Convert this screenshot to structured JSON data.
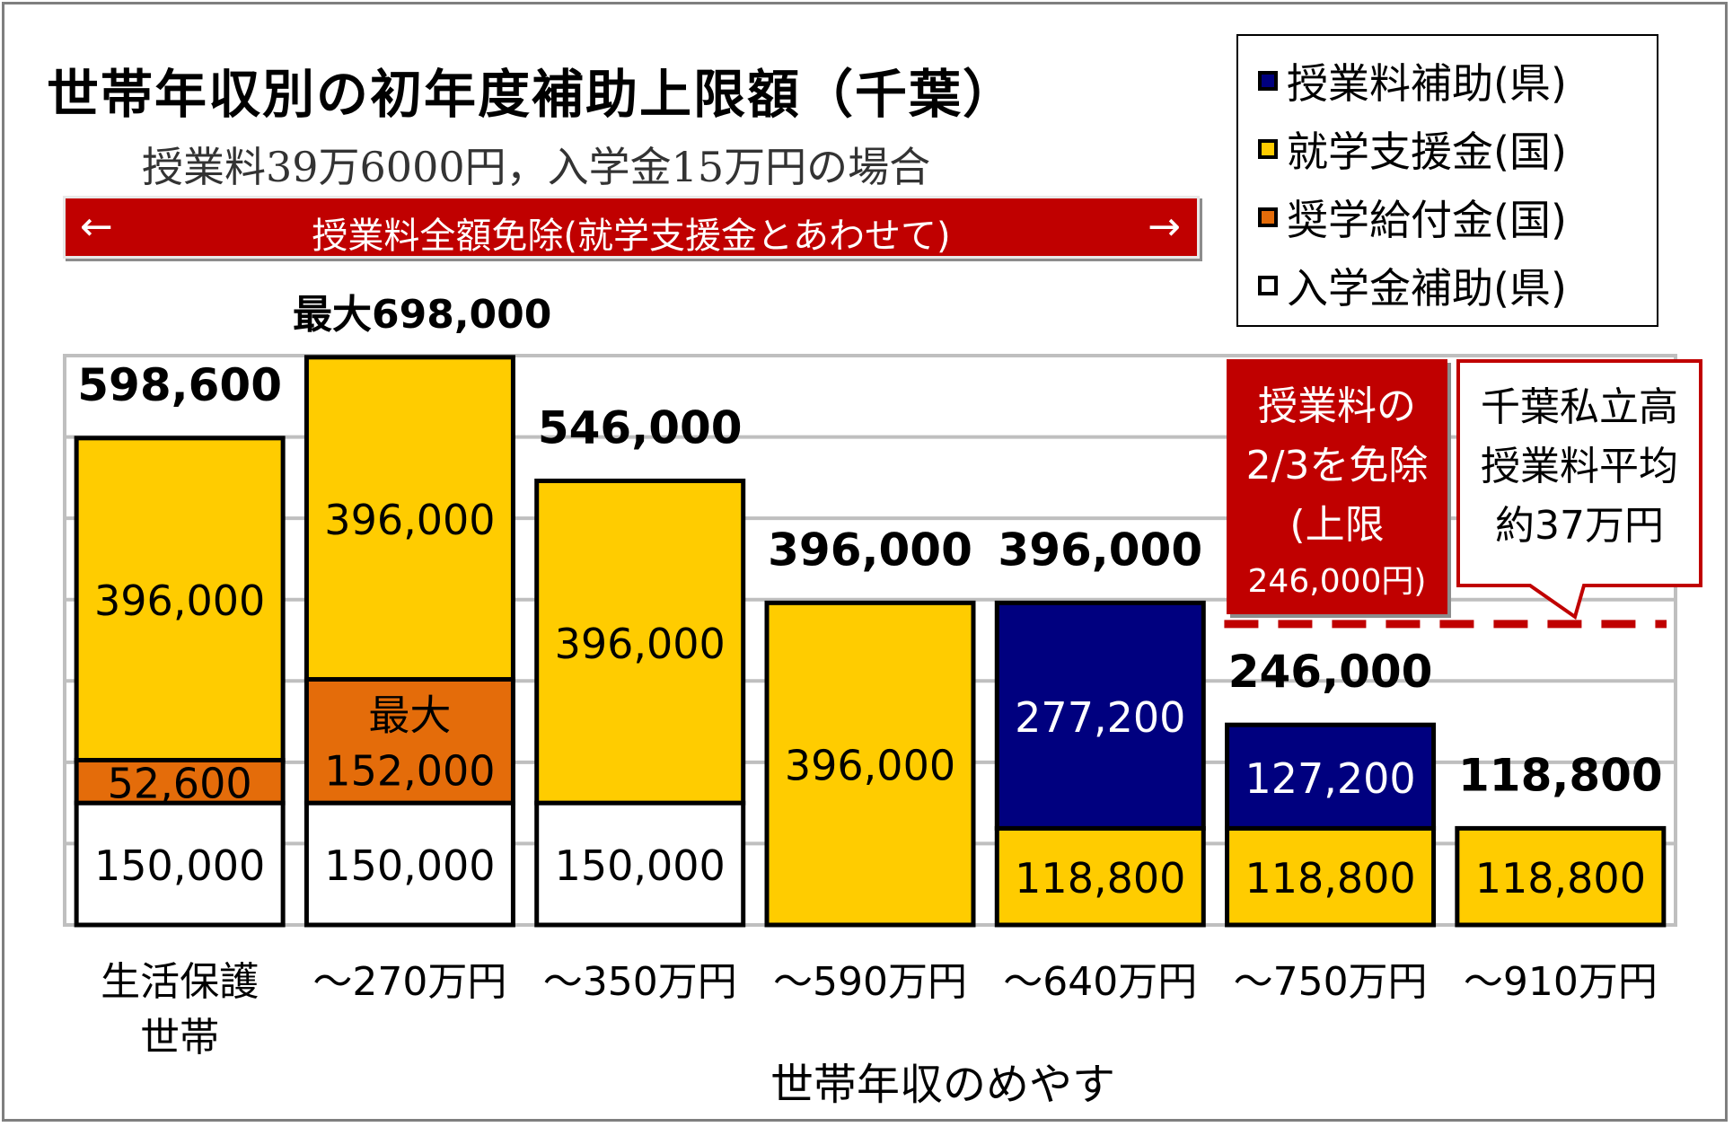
{
  "title": "世帯年収別の初年度補助上限額（千葉）",
  "subtitle": "授業料39万6000円，入学金15万円の場合",
  "banner": {
    "text": "授業料全額免除(就学支援金とあわせて)",
    "left_arrow": "←",
    "right_arrow": "→"
  },
  "max_label": "最大698,000",
  "note_exempt": {
    "line1": "授業料の",
    "line2": "2/3を免除",
    "line3": "(上限",
    "line4": "246,000円)"
  },
  "note_average": {
    "line1": "千葉私立高",
    "line2": "授業料平均",
    "line3": "約37万円"
  },
  "colors": {
    "prefecture_tuition": "#00007f",
    "national_support": "#ffcc00",
    "national_scholarship": "#e46c0a",
    "admission_aid": "#ffffff",
    "banner": "#c00000",
    "average_line": "#c00000"
  },
  "chart_data": {
    "type": "bar",
    "stacked": true,
    "xlabel": "世帯年収のめやす",
    "ylabel": "",
    "ylim": [
      0,
      700000
    ],
    "grid": true,
    "legend_position": "top-right",
    "categories": [
      [
        "生活保護",
        "世帯"
      ],
      [
        "～270万円"
      ],
      [
        "～350万円"
      ],
      [
        "～590万円"
      ],
      [
        "～640万円"
      ],
      [
        "～750万円"
      ],
      [
        "～910万円"
      ]
    ],
    "series": [
      {
        "name": "入学金補助(県)",
        "key": "admission_aid",
        "values": [
          150000,
          150000,
          150000,
          0,
          0,
          0,
          0
        ]
      },
      {
        "name": "奨学給付金(国)",
        "key": "national_scholarship",
        "values": [
          52600,
          152000,
          0,
          0,
          0,
          0,
          0
        ]
      },
      {
        "name": "就学支援金(国)",
        "key": "national_support",
        "values": [
          396000,
          396000,
          396000,
          396000,
          118800,
          118800,
          118800
        ]
      },
      {
        "name": "授業料補助(県)",
        "key": "prefecture_tuition",
        "values": [
          0,
          0,
          0,
          0,
          277200,
          127200,
          0
        ]
      }
    ],
    "legend_order": [
      "prefecture_tuition",
      "national_support",
      "national_scholarship",
      "admission_aid"
    ],
    "segment_labels": [
      [
        {
          "key": "admission_aid",
          "text": "150,000"
        },
        {
          "key": "national_scholarship",
          "text": "52,600"
        },
        {
          "key": "national_support",
          "text": "396,000"
        }
      ],
      [
        {
          "key": "admission_aid",
          "text": "150,000"
        },
        {
          "key": "national_scholarship",
          "text": "最大\n152,000"
        },
        {
          "key": "national_support",
          "text": "396,000"
        }
      ],
      [
        {
          "key": "admission_aid",
          "text": "150,000"
        },
        {
          "key": "national_support",
          "text": "396,000"
        }
      ],
      [
        {
          "key": "national_support",
          "text": "396,000"
        }
      ],
      [
        {
          "key": "national_support",
          "text": "118,800"
        },
        {
          "key": "prefecture_tuition",
          "text": "277,200"
        }
      ],
      [
        {
          "key": "national_support",
          "text": "118,800"
        },
        {
          "key": "prefecture_tuition",
          "text": "127,200"
        }
      ],
      [
        {
          "key": "national_support",
          "text": "118,800"
        }
      ]
    ],
    "totals": [
      "598,600",
      "",
      "546,000",
      "396,000",
      "396,000",
      "246,000",
      "118,800"
    ],
    "average_tuition_line": 370000
  }
}
